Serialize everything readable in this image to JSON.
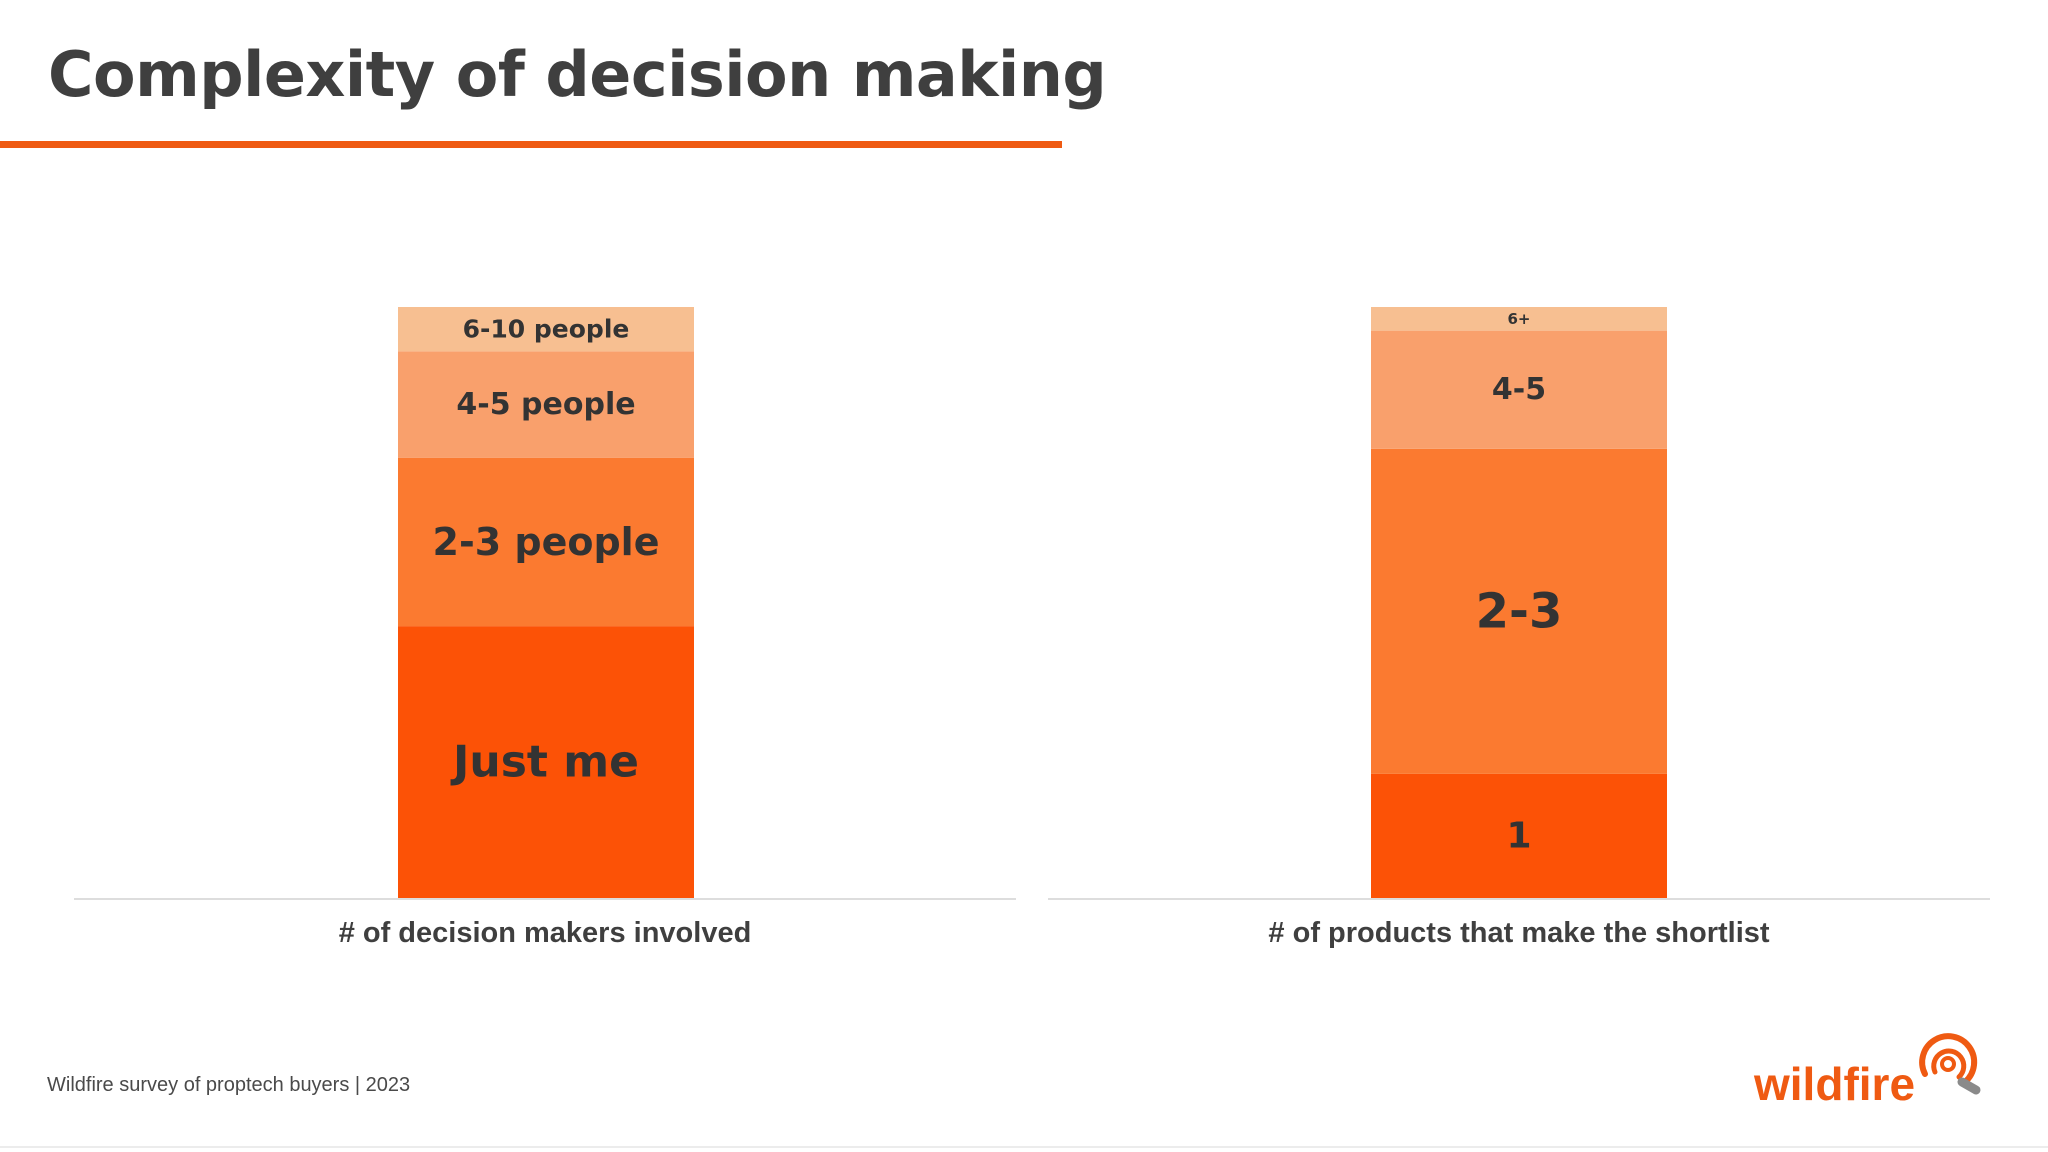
{
  "slide": {
    "title": "Complexity of decision making",
    "footer": "Wildfire survey of proptech buyers | 2023",
    "logo_text": "wildfire"
  },
  "colors": {
    "title_text": "#3f3f3f",
    "accent": "#ef5a12",
    "segment_darkest": "#fc5206",
    "segment_dark": "#fb7a30",
    "segment_light": "#f9a06c",
    "segment_lightest": "#f7bf91",
    "label_text": "#333333",
    "axis_label_text": "#3f3f3f",
    "axis_line": "#dddddd",
    "logo_grey": "#8a8a8a"
  },
  "chart_data": [
    {
      "type": "bar",
      "stacked": true,
      "xlabel": "# of decision makers involved",
      "ylim": [
        0,
        100
      ],
      "series": [
        {
          "name": "Just me",
          "values": [
            46
          ],
          "color": "#fc5206"
        },
        {
          "name": "2-3 people",
          "values": [
            28.5
          ],
          "color": "#fb7a30"
        },
        {
          "name": "4-5 people",
          "values": [
            18
          ],
          "color": "#f9a06c"
        },
        {
          "name": "6-10 people",
          "values": [
            7.5
          ],
          "color": "#f7bf91"
        }
      ]
    },
    {
      "type": "bar",
      "stacked": true,
      "xlabel": "# of products that make the shortlist",
      "ylim": [
        0,
        100
      ],
      "series": [
        {
          "name": "1",
          "values": [
            21
          ],
          "color": "#fc5206"
        },
        {
          "name": "2-3",
          "values": [
            55
          ],
          "color": "#fb7a30"
        },
        {
          "name": "4-5",
          "values": [
            20
          ],
          "color": "#f9a06c"
        },
        {
          "name": "6+",
          "values": [
            4
          ],
          "color": "#f7bf91"
        }
      ]
    }
  ]
}
